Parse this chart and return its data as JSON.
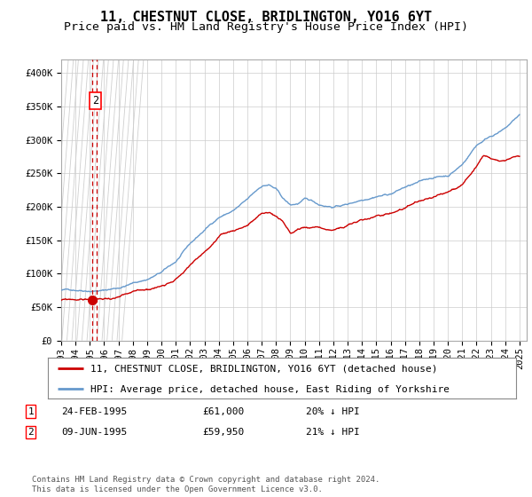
{
  "title": "11, CHESTNUT CLOSE, BRIDLINGTON, YO16 6YT",
  "subtitle": "Price paid vs. HM Land Registry's House Price Index (HPI)",
  "ylim": [
    0,
    420000
  ],
  "yticks": [
    0,
    50000,
    100000,
    150000,
    200000,
    250000,
    300000,
    350000,
    400000
  ],
  "ytick_labels": [
    "£0",
    "£50K",
    "£100K",
    "£150K",
    "£200K",
    "£250K",
    "£300K",
    "£350K",
    "£400K"
  ],
  "xlim_start": 1993,
  "xlim_end": 2025.5,
  "hpi_color": "#6699cc",
  "price_color": "#cc0000",
  "background_color": "#ffffff",
  "grid_color": "#cccccc",
  "hatch_color": "#bbbbbb",
  "hatched_region_end_year": 1995.5,
  "sale1_date": 1995.15,
  "sale1_price": 61000,
  "sale2_date": 1995.46,
  "sale2_price": 59950,
  "legend_entry1": "11, CHESTNUT CLOSE, BRIDLINGTON, YO16 6YT (detached house)",
  "legend_entry2": "HPI: Average price, detached house, East Riding of Yorkshire",
  "table_rows": [
    {
      "num": "1",
      "date": "24-FEB-1995",
      "price": "£61,000",
      "hpi": "20% ↓ HPI"
    },
    {
      "num": "2",
      "date": "09-JUN-1995",
      "price": "£59,950",
      "hpi": "21% ↓ HPI"
    }
  ],
  "footer": "Contains HM Land Registry data © Crown copyright and database right 2024.\nThis data is licensed under the Open Government Licence v3.0.",
  "title_fontsize": 11,
  "subtitle_fontsize": 9.5,
  "tick_fontsize": 7.5,
  "legend_fontsize": 8,
  "table_fontsize": 8,
  "footer_fontsize": 6.5,
  "mono_font": "DejaVu Sans Mono"
}
